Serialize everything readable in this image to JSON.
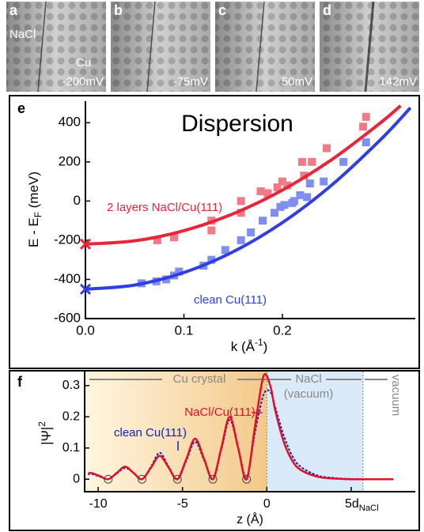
{
  "panels": [
    {
      "label": "a",
      "texts": [
        "NaCl",
        "Cu"
      ],
      "bias": "-200mV"
    },
    {
      "label": "b",
      "bias": "-75mV"
    },
    {
      "label": "c",
      "bias": "50mV"
    },
    {
      "label": "d",
      "bias": "142mV"
    }
  ],
  "chart_data": [
    {
      "type": "scatter",
      "panel_label": "e",
      "title": "Dispersion",
      "xlabel": [
        "k (Å",
        "-1",
        ")"
      ],
      "ylabel": [
        "E - E",
        "F",
        " (meV)"
      ],
      "xlim": [
        0,
        0.335
      ],
      "ylim": [
        -600,
        510
      ],
      "xticks": [
        {
          "value": 0,
          "label": "0.0"
        },
        0.1,
        0.2
      ],
      "yticks": [
        -600,
        -400,
        -200,
        0,
        200,
        400
      ],
      "series": [
        {
          "name": "2 layers NaCl/Cu(111)",
          "color": "#e8253a",
          "marker_color": "#f07a86",
          "x": [
            0.073,
            0.09,
            0.128,
            0.128,
            0.158,
            0.158,
            0.178,
            0.185,
            0.195,
            0.2,
            0.205,
            0.22,
            0.222,
            0.23,
            0.245,
            0.282,
            0.285
          ],
          "values": [
            -200,
            -185,
            -100,
            -150,
            -60,
            0,
            50,
            40,
            70,
            100,
            80,
            200,
            130,
            200,
            270,
            380,
            430
          ],
          "fit": {
            "x": [
              0,
              0.05,
              0.1,
              0.15,
              0.2,
              0.25,
              0.3,
              0.32
            ],
            "values": [
              -220,
              -203,
              -151,
              -65,
              56,
              211,
              401,
              487
            ]
          }
        },
        {
          "name": "clean Cu(111)",
          "color": "#2f3fe0",
          "marker_color": "#7f8ff0",
          "x": [
            0.057,
            0.072,
            0.082,
            0.09,
            0.095,
            0.12,
            0.128,
            0.142,
            0.158,
            0.168,
            0.18,
            0.192,
            0.198,
            0.202,
            0.21,
            0.212,
            0.218,
            0.225,
            0.228,
            0.242,
            0.262,
            0.285
          ],
          "values": [
            -420,
            -410,
            -400,
            -380,
            -360,
            -330,
            -300,
            -250,
            -200,
            -160,
            -100,
            -60,
            -30,
            -20,
            -10,
            0,
            30,
            20,
            90,
            100,
            200,
            300
          ],
          "fit": {
            "x": [
              0,
              0.05,
              0.1,
              0.15,
              0.2,
              0.25,
              0.3,
              0.33
            ],
            "values": [
              -450,
              -429,
              -365,
              -259,
              -110,
              81,
              315,
              476
            ]
          }
        }
      ]
    },
    {
      "type": "line",
      "panel_label": "f",
      "xlabel": "z (Å)",
      "ylabel": [
        "|Ψ|",
        "2"
      ],
      "xlim": [
        -10.8,
        8.8
      ],
      "ylim": [
        -0.04,
        0.345
      ],
      "xticks": [
        -10,
        -5,
        0,
        {
          "value": 5,
          "label": "5dNaCl"
        }
      ],
      "yticks": [
        0,
        0.1,
        0.2,
        0.3
      ],
      "x": [
        -10.6,
        -10.4,
        -9.9,
        -9.4,
        -8.9,
        -8.4,
        -7.9,
        -7.4,
        -6.87,
        -6.35,
        -5.82,
        -5.3,
        -4.77,
        -4.25,
        -3.72,
        -3.2,
        -2.7,
        -2.2,
        -1.7,
        -1.2,
        -0.7,
        -0.2,
        0.2,
        0.5,
        1,
        1.5,
        2,
        3,
        4,
        5,
        7.5
      ],
      "series": [
        {
          "name": "NaCl/Cu(111)",
          "color": "#e0102a",
          "values": [
            0.018,
            0.02,
            0.01,
            0,
            0.02,
            0.04,
            0.02,
            0,
            0.037,
            0.075,
            0.037,
            0,
            0.065,
            0.13,
            0.065,
            0,
            0.1,
            0.2,
            0.1,
            0,
            0.17,
            0.33,
            0.3,
            0.22,
            0.12,
            0.06,
            0.03,
            0.008,
            0.002,
            0,
            0
          ]
        },
        {
          "name": "clean Cu(111)",
          "color": "#1020c0",
          "dash": true,
          "values": [
            0.015,
            0.017,
            0.008,
            0,
            0.018,
            0.036,
            0.02,
            0,
            0.04,
            0.085,
            0.04,
            0,
            0.06,
            0.12,
            0.06,
            0,
            0.095,
            0.19,
            0.1,
            0.005,
            0.15,
            0.27,
            0.28,
            0.23,
            0.14,
            0.075,
            0.04,
            0.012,
            0.004,
            0.001,
            0
          ]
        }
      ],
      "nodes": [
        -9.4,
        -7.4,
        -5.3,
        -3.2,
        -1.2
      ],
      "boundaries": [
        0,
        5.7
      ],
      "region_labels": [
        "Cu crystal",
        "NaCl",
        "(vacuum)",
        "vacuum"
      ]
    }
  ]
}
